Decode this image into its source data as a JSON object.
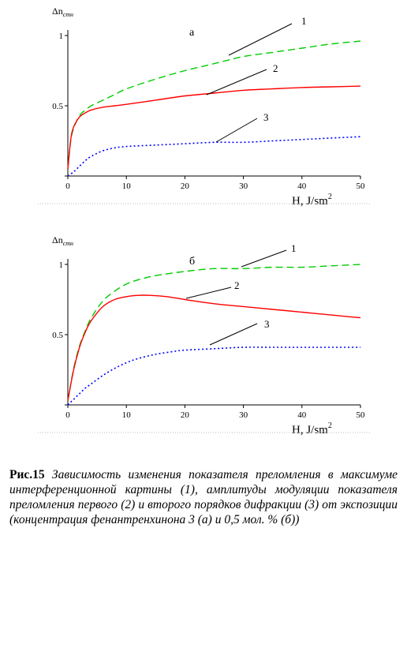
{
  "chart_data": [
    {
      "type": "line",
      "title": "",
      "panel_label": "а",
      "ylabel": "Δn",
      "ylabel_sub": "стн",
      "xlabel": "H, J/sm",
      "xlabel_sup": "2",
      "xlim": [
        0,
        50
      ],
      "ylim": [
        0,
        1
      ],
      "xticks": [
        0,
        10,
        20,
        30,
        40,
        50
      ],
      "yticks": [
        "0.5",
        "1"
      ],
      "grid": false,
      "series": [
        {
          "name": "1",
          "color": "#00cc00",
          "dash": "dashed",
          "x": [
            0,
            0.5,
            1,
            2,
            3,
            4,
            6,
            8,
            10,
            15,
            20,
            25,
            30,
            35,
            40,
            45,
            50
          ],
          "y": [
            0.05,
            0.25,
            0.34,
            0.43,
            0.47,
            0.5,
            0.54,
            0.58,
            0.62,
            0.69,
            0.75,
            0.8,
            0.85,
            0.88,
            0.91,
            0.94,
            0.96
          ]
        },
        {
          "name": "2",
          "color": "#ff0000",
          "dash": "solid",
          "x": [
            0,
            0.5,
            1,
            2,
            3,
            4,
            6,
            8,
            10,
            15,
            20,
            25,
            30,
            35,
            40,
            45,
            50
          ],
          "y": [
            0.05,
            0.26,
            0.35,
            0.42,
            0.45,
            0.47,
            0.49,
            0.5,
            0.51,
            0.54,
            0.57,
            0.59,
            0.61,
            0.62,
            0.63,
            0.635,
            0.64
          ]
        },
        {
          "name": "3",
          "color": "#0000ff",
          "dash": "dotted",
          "x": [
            0,
            1,
            2,
            3,
            4,
            6,
            8,
            10,
            15,
            20,
            25,
            30,
            35,
            40,
            45,
            50
          ],
          "y": [
            0,
            0.03,
            0.07,
            0.11,
            0.14,
            0.18,
            0.2,
            0.21,
            0.22,
            0.23,
            0.24,
            0.24,
            0.25,
            0.26,
            0.27,
            0.28
          ]
        }
      ]
    },
    {
      "type": "line",
      "title": "",
      "panel_label": "б",
      "ylabel": "Δn",
      "ylabel_sub": "стн",
      "xlabel": "H, J/sm",
      "xlabel_sup": "2",
      "xlim": [
        0,
        50
      ],
      "ylim": [
        0,
        1
      ],
      "xticks": [
        0,
        10,
        20,
        30,
        40,
        50
      ],
      "yticks": [
        "0.5",
        "1"
      ],
      "grid": false,
      "series": [
        {
          "name": "1",
          "color": "#00cc00",
          "dash": "dashed",
          "x": [
            0,
            1,
            2,
            3,
            4,
            6,
            8,
            10,
            12,
            15,
            20,
            25,
            30,
            35,
            40,
            45,
            50
          ],
          "y": [
            0.03,
            0.26,
            0.42,
            0.53,
            0.62,
            0.74,
            0.81,
            0.86,
            0.89,
            0.92,
            0.95,
            0.97,
            0.97,
            0.98,
            0.98,
            0.99,
            1.0
          ]
        },
        {
          "name": "2",
          "color": "#ff0000",
          "dash": "solid",
          "x": [
            0,
            1,
            2,
            3,
            4,
            6,
            8,
            10,
            12,
            14,
            17,
            20,
            25,
            30,
            35,
            40,
            45,
            50
          ],
          "y": [
            0.03,
            0.25,
            0.41,
            0.52,
            0.6,
            0.7,
            0.75,
            0.77,
            0.78,
            0.78,
            0.77,
            0.75,
            0.72,
            0.7,
            0.68,
            0.66,
            0.64,
            0.62
          ]
        },
        {
          "name": "3",
          "color": "#0000ff",
          "dash": "dotted",
          "x": [
            0,
            1,
            2,
            3,
            4,
            6,
            8,
            10,
            12,
            15,
            18,
            20,
            25,
            30,
            35,
            40,
            45,
            50
          ],
          "y": [
            0,
            0.04,
            0.08,
            0.12,
            0.15,
            0.21,
            0.26,
            0.3,
            0.33,
            0.36,
            0.38,
            0.39,
            0.4,
            0.41,
            0.41,
            0.41,
            0.41,
            0.41
          ]
        }
      ]
    }
  ],
  "caption": {
    "label": "Рис.15",
    "text": " Зависимость изменения показателя преломления в максимуме интерференционной картины (1), амплитуды модуляции показателя преломления первого (2) и второго порядков дифракции (3) от экспозиции (концентрация фенантренхинона 3 (а) и 0,5 мол. % (б))"
  }
}
